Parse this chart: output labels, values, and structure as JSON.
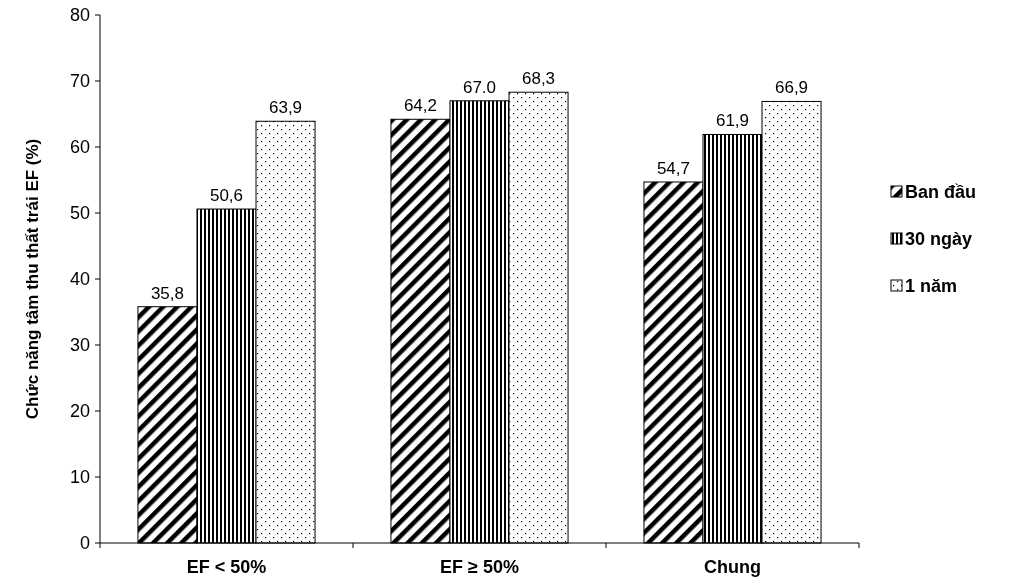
{
  "chart_data": {
    "type": "bar",
    "ylabel": "Chức năng tâm thu thất trái EF (%)",
    "categories": [
      "EF < 50%",
      "EF ≥ 50%",
      "Chung"
    ],
    "series": [
      {
        "name": "Ban đầu",
        "color": "#000000",
        "values": [
          35.8,
          64.2,
          54.7
        ],
        "value_labels": [
          "35,8",
          "64,2",
          "54,7"
        ]
      },
      {
        "name": "30 ngày",
        "color": "#000000",
        "values": [
          50.6,
          67.0,
          61.9
        ],
        "value_labels": [
          "50,6",
          "67.0",
          "61,9"
        ]
      },
      {
        "name": "1 năm",
        "color": "#000000",
        "values": [
          63.9,
          68.3,
          66.9
        ],
        "value_labels": [
          "63,9",
          "68,3",
          "66,9"
        ]
      }
    ],
    "ylim": [
      0,
      80
    ],
    "yticks": [
      0,
      10,
      20,
      30,
      40,
      50,
      60,
      70,
      80
    ],
    "grid": false,
    "legend": "right"
  }
}
